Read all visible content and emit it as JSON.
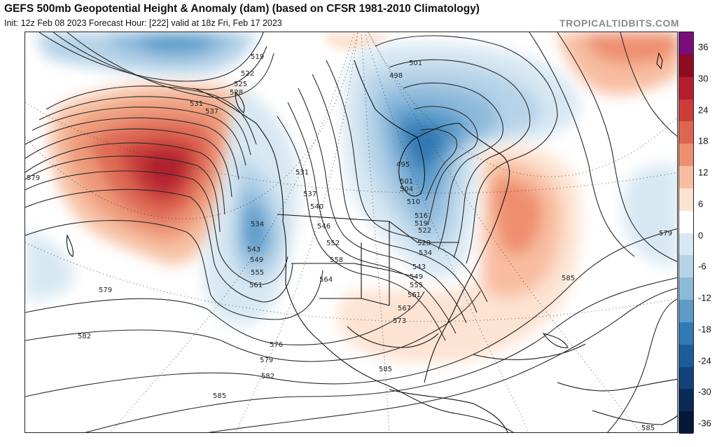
{
  "header": {
    "title": "GEFS 500mb Geopotential Height & Anomaly (dam) (based on CFSR 1981-2010 Climatology)",
    "subtitle": "Init: 12z Feb 08 2023   Forecast Hour: [222]   valid at 18z Fri, Feb 17 2023",
    "brand": "TROPICALTIDBITS.COM"
  },
  "colorbar": {
    "labels": [
      "36",
      "30",
      "24",
      "18",
      "12",
      "6",
      "0",
      "-6",
      "-12",
      "-18",
      "-24",
      "-30",
      "-36"
    ],
    "colors": [
      "#7a0d7a",
      "#8e0b22",
      "#b51e2e",
      "#cc3d3a",
      "#de6550",
      "#ee9070",
      "#f8bda0",
      "#fde3d2",
      "#ffffff",
      "#d8e8f3",
      "#b6d3e8",
      "#8dbadb",
      "#5c9bca",
      "#3179b3",
      "#1b5d9a",
      "#11437a",
      "#0a2b5a",
      "#06183a"
    ],
    "neutral_color": "#ffffff"
  },
  "map": {
    "height_contour_labels": [
      "519",
      "522",
      "525",
      "528",
      "531",
      "537",
      "501",
      "498",
      "495",
      "501",
      "504",
      "510",
      "516",
      "519",
      "522",
      "528",
      "534",
      "531",
      "537",
      "540",
      "546",
      "552",
      "558",
      "564",
      "534",
      "543",
      "549",
      "555",
      "561",
      "543",
      "549",
      "555",
      "561",
      "567",
      "573",
      "579",
      "579",
      "579",
      "582",
      "576",
      "579",
      "582",
      "585",
      "585",
      "585",
      "585"
    ],
    "anomaly_features": [
      {
        "name": "north-pacific-ridge",
        "sign": "positive",
        "peak_anomaly": 30
      },
      {
        "name": "west-coast-trough",
        "sign": "negative",
        "peak_anomaly": -18
      },
      {
        "name": "hudson-bay-vortex",
        "sign": "negative",
        "peak_anomaly": -24
      },
      {
        "name": "eastern-us-ridge",
        "sign": "positive",
        "peak_anomaly": 12
      },
      {
        "name": "north-atlantic-ridge",
        "sign": "positive",
        "peak_anomaly": 12
      },
      {
        "name": "subtropical-atlantic-trough",
        "sign": "negative",
        "peak_anomaly": -6
      },
      {
        "name": "subtropical-pacific-trough",
        "sign": "negative",
        "peak_anomaly": -6
      }
    ]
  }
}
